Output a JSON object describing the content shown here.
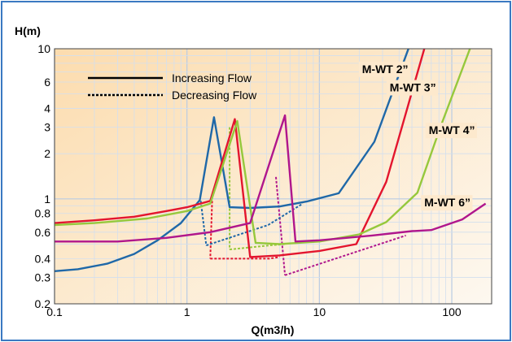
{
  "chart_data": {
    "type": "line",
    "xlabel": "Q(m3/h)",
    "ylabel": "H(m)",
    "x_scale": "log",
    "y_scale": "log",
    "xlim": [
      0.1,
      200
    ],
    "ylim": [
      0.2,
      10
    ],
    "x_ticks": [
      0.1,
      1,
      10,
      100
    ],
    "x_tick_labels": [
      "0.1",
      "1",
      "10",
      "100"
    ],
    "y_ticks": [
      0.2,
      0.3,
      0.4,
      0.6,
      0.8,
      1,
      2,
      3,
      4,
      6,
      10
    ],
    "y_tick_labels": [
      "0.2",
      "0.3",
      "0.4",
      "0.6",
      "0.8",
      "1",
      "2",
      "3",
      "4",
      "6",
      "10"
    ],
    "grid": true,
    "background_gradient": [
      "#fcdcae",
      "#fdf8f0"
    ],
    "legend": {
      "position": "top-left",
      "items": [
        {
          "label": "Increasing Flow",
          "style": "solid"
        },
        {
          "label": "Decreasing Flow",
          "style": "dotted"
        }
      ]
    },
    "series": [
      {
        "name": "M-WT 2”",
        "color": "#1f68a8",
        "label_at": [
          21,
          6.9
        ],
        "increasing": [
          [
            0.1,
            0.33
          ],
          [
            0.15,
            0.34
          ],
          [
            0.25,
            0.37
          ],
          [
            0.4,
            0.43
          ],
          [
            0.6,
            0.53
          ],
          [
            0.9,
            0.69
          ],
          [
            1.25,
            0.98
          ],
          [
            1.6,
            3.5
          ],
          [
            2.1,
            0.88
          ],
          [
            3,
            0.87
          ],
          [
            5,
            0.89
          ],
          [
            8,
            0.96
          ],
          [
            14,
            1.09
          ],
          [
            26,
            2.4
          ],
          [
            48,
            10.5
          ]
        ],
        "decreasing": [
          [
            1.4,
            0.49
          ],
          [
            4.1,
            0.67
          ],
          [
            7.5,
            0.93
          ]
        ]
      },
      {
        "name": "M-WT 3”",
        "color": "#e3152e",
        "label_at": [
          34,
          5.2
        ],
        "increasing": [
          [
            0.1,
            0.69
          ],
          [
            0.2,
            0.72
          ],
          [
            0.4,
            0.76
          ],
          [
            0.7,
            0.83
          ],
          [
            1.0,
            0.88
          ],
          [
            1.5,
            0.97
          ],
          [
            2.3,
            3.4
          ],
          [
            3,
            0.41
          ],
          [
            5,
            0.42
          ],
          [
            10,
            0.45
          ],
          [
            19,
            0.5
          ],
          [
            32,
            1.3
          ],
          [
            63,
            10.5
          ]
        ],
        "decreasing": [
          [
            1.5,
            0.4
          ],
          [
            4.2,
            0.4
          ],
          [
            5,
            0.41
          ]
        ]
      },
      {
        "name": "M-WT 4”",
        "color": "#96c83c",
        "label_at": [
          67,
          2.7
        ],
        "increasing": [
          [
            0.1,
            0.67
          ],
          [
            0.2,
            0.69
          ],
          [
            0.5,
            0.74
          ],
          [
            1.0,
            0.83
          ],
          [
            1.5,
            0.93
          ],
          [
            2.4,
            3.3
          ],
          [
            3.3,
            0.51
          ],
          [
            5,
            0.5
          ],
          [
            10,
            0.52
          ],
          [
            20,
            0.58
          ],
          [
            32,
            0.7
          ],
          [
            55,
            1.1
          ],
          [
            82,
            3
          ],
          [
            140,
            10.5
          ]
        ],
        "decreasing": [
          [
            2.1,
            0.46
          ],
          [
            4.2,
            0.49
          ],
          [
            5.5,
            0.5
          ]
        ]
      },
      {
        "name": "M-WT 6”",
        "color": "#b0168c",
        "label_at": [
          62,
          0.89
        ],
        "increasing": [
          [
            0.1,
            0.52
          ],
          [
            0.3,
            0.52
          ],
          [
            0.7,
            0.55
          ],
          [
            1.5,
            0.6
          ],
          [
            3,
            0.69
          ],
          [
            5.5,
            3.6
          ],
          [
            6.6,
            0.52
          ],
          [
            10,
            0.53
          ],
          [
            25,
            0.57
          ],
          [
            50,
            0.61
          ],
          [
            70,
            0.62
          ],
          [
            120,
            0.73
          ],
          [
            180,
            0.93
          ]
        ],
        "decreasing": [
          [
            5.5,
            0.31
          ],
          [
            45,
            0.57
          ]
        ]
      }
    ],
    "switch_lines": [
      {
        "series": "M-WT 2”",
        "points": [
          [
            1.27,
            0.97
          ],
          [
            1.4,
            0.49
          ]
        ]
      },
      {
        "series": "M-WT 3”",
        "points": [
          [
            1.55,
            0.97
          ],
          [
            1.5,
            0.4
          ]
        ]
      },
      {
        "series": "M-WT 4”",
        "points": [
          [
            2.1,
            3.0
          ],
          [
            2.1,
            0.46
          ]
        ]
      },
      {
        "series": "M-WT 6”",
        "points": [
          [
            4.7,
            1.4
          ],
          [
            5.5,
            0.31
          ]
        ]
      }
    ]
  }
}
